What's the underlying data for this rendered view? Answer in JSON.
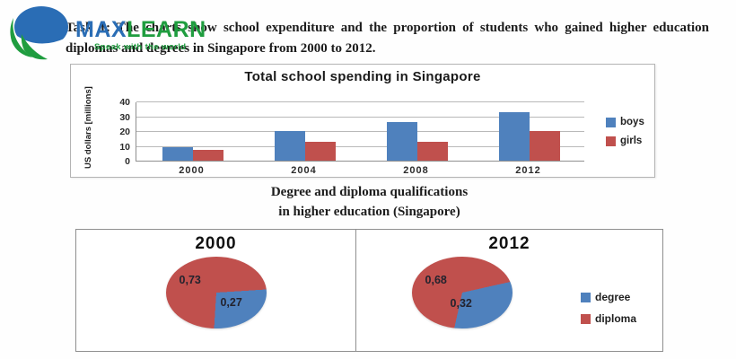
{
  "logo": {
    "brand_max": "MAX",
    "brand_learn": "LEARN",
    "tagline": "Speak with the world",
    "blue": "#2a6db5",
    "green": "#1f9d3f"
  },
  "task": {
    "text": "Task 1: The charts show school expenditure and the proportion of students who gained higher education diplomas and degrees in Singapore from 2000 to 2012."
  },
  "chart_data": [
    {
      "type": "bar",
      "title": "Total school spending in Singapore",
      "categories": [
        "2000",
        "2004",
        "2008",
        "2012"
      ],
      "series": [
        {
          "name": "boys",
          "color": "#4f81bd",
          "values": [
            9,
            20,
            26,
            33
          ]
        },
        {
          "name": "girls",
          "color": "#c0504d",
          "values": [
            7,
            13,
            13,
            20
          ]
        }
      ],
      "xlabel": "",
      "ylabel": "US dollars [millions]",
      "yticks": [
        0,
        10,
        20,
        30,
        40
      ],
      "ylim": [
        0,
        40
      ],
      "grid": true,
      "legend_position": "right"
    },
    {
      "type": "pie",
      "title_lines": [
        "Degree and diploma qualifications",
        "in higher education (Singapore)"
      ],
      "charts": [
        {
          "label": "2000",
          "slices": [
            {
              "name": "degree",
              "value": 0.27,
              "label": "0,27"
            },
            {
              "name": "diploma",
              "value": 0.73,
              "label": "0,73"
            }
          ]
        },
        {
          "label": "2012",
          "slices": [
            {
              "name": "degree",
              "value": 0.32,
              "label": "0,32"
            },
            {
              "name": "diploma",
              "value": 0.68,
              "label": "0,68"
            }
          ]
        }
      ],
      "legend": [
        {
          "name": "degree",
          "color": "#4f81bd"
        },
        {
          "name": "diploma",
          "color": "#c0504d"
        }
      ]
    }
  ]
}
